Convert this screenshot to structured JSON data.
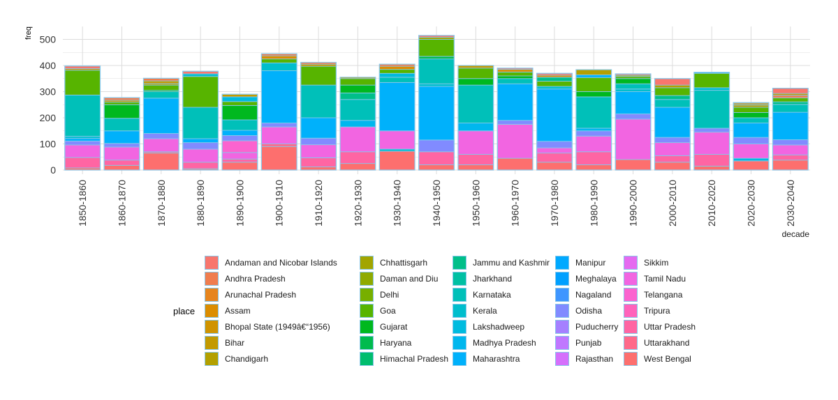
{
  "chart_data": {
    "type": "bar",
    "stacked": true,
    "ylabel": "freq",
    "xlabel": "decade",
    "ylim": [
      0,
      540
    ],
    "yticks": [
      0,
      100,
      200,
      300,
      400,
      500
    ],
    "grid": true,
    "legend_position": "bottom",
    "legend_title": "place",
    "categories": [
      "1850-1860",
      "1860-1870",
      "1870-1880",
      "1880-1890",
      "1890-1900",
      "1900-1910",
      "1910-1920",
      "1920-1930",
      "1930-1940",
      "1940-1950",
      "1950-1960",
      "1960-1970",
      "1970-1980",
      "1980-1990",
      "1990-2000",
      "2000-2010",
      "2010-2020",
      "2020-2030",
      "2030-2040"
    ],
    "totals": [
      398,
      277,
      351,
      378,
      290,
      445,
      412,
      355,
      405,
      515,
      400,
      390,
      370,
      384,
      368,
      350,
      374,
      258,
      313
    ],
    "series": [
      {
        "name": "Andaman and Nicobar Islands",
        "color": "#F8766D"
      },
      {
        "name": "Andhra Pradesh",
        "color": "#F07D4E"
      },
      {
        "name": "Arunachal Pradesh",
        "color": "#E7851E"
      },
      {
        "name": "Assam",
        "color": "#DC8D00"
      },
      {
        "name": "Bhopal State (1949â€“1956)",
        "color": "#D09400"
      },
      {
        "name": "Bihar",
        "color": "#C39A00"
      },
      {
        "name": "Chandigarh",
        "color": "#B3A000"
      },
      {
        "name": "Chhattisgarh",
        "color": "#A2A500"
      },
      {
        "name": "Daman and Diu",
        "color": "#8FAA00"
      },
      {
        "name": "Delhi",
        "color": "#77AF00"
      },
      {
        "name": "Goa",
        "color": "#57B400"
      },
      {
        "name": "Gujarat",
        "color": "#00B81F"
      },
      {
        "name": "Haryana",
        "color": "#00BB4E"
      },
      {
        "name": "Himachal Pradesh",
        "color": "#00BD6E"
      },
      {
        "name": "Jammu and Kashmir",
        "color": "#00BF8A"
      },
      {
        "name": "Jharkhand",
        "color": "#00C0A3"
      },
      {
        "name": "Karnataka",
        "color": "#00C0B9"
      },
      {
        "name": "Kerala",
        "color": "#00BECD"
      },
      {
        "name": "Lakshadweep",
        "color": "#00BBDF"
      },
      {
        "name": "Madhya Pradesh",
        "color": "#00B7EE"
      },
      {
        "name": "Maharashtra",
        "color": "#00B1FB"
      },
      {
        "name": "Manipur",
        "color": "#00A9FF"
      },
      {
        "name": "Meghalaya",
        "color": "#00A0FF"
      },
      {
        "name": "Nagaland",
        "color": "#3F96FF"
      },
      {
        "name": "Odisha",
        "color": "#818BFF"
      },
      {
        "name": "Puducherry",
        "color": "#A580FF"
      },
      {
        "name": "Punjab",
        "color": "#C077FF"
      },
      {
        "name": "Rajasthan",
        "color": "#D56FFB"
      },
      {
        "name": "Sikkim",
        "color": "#E56AF0"
      },
      {
        "name": "Tamil Nadu",
        "color": "#F265E1"
      },
      {
        "name": "Telangana",
        "color": "#FB63CF"
      },
      {
        "name": "Tripura",
        "color": "#FF63BB"
      },
      {
        "name": "Uttar Pradesh",
        "color": "#FF65A3"
      },
      {
        "name": "Uttarakhand",
        "color": "#FF698A"
      },
      {
        "name": "West Bengal",
        "color": "#FD6F6E"
      }
    ],
    "segments": [
      [
        [
          "West Bengal",
          8
        ],
        [
          "Uttar Pradesh",
          40
        ],
        [
          "Tamil Nadu",
          48
        ],
        [
          "Odisha",
          15
        ],
        [
          "Maharashtra",
          10
        ],
        [
          "Kerala",
          8
        ],
        [
          "Karnataka",
          158
        ],
        [
          "Goa",
          95
        ],
        [
          "Bihar",
          6
        ],
        [
          "Andaman and Nicobar Islands",
          10
        ]
      ],
      [
        [
          "West Bengal",
          18
        ],
        [
          "Uttar Pradesh",
          20
        ],
        [
          "Tamil Nadu",
          50
        ],
        [
          "Odisha",
          14
        ],
        [
          "Maharashtra",
          48
        ],
        [
          "Karnataka",
          48
        ],
        [
          "Gujarat",
          52
        ],
        [
          "Goa",
          10
        ],
        [
          "Bihar",
          7
        ],
        [
          "Andhra Pradesh",
          10
        ]
      ],
      [
        [
          "West Bengal",
          65
        ],
        [
          "Uttarakhand",
          5
        ],
        [
          "Tamil Nadu",
          50
        ],
        [
          "Odisha",
          20
        ],
        [
          "Maharashtra",
          135
        ],
        [
          "Karnataka",
          25
        ],
        [
          "Gujarat",
          5
        ],
        [
          "Goa",
          20
        ],
        [
          "Chandigarh",
          6
        ],
        [
          "Bihar",
          10
        ],
        [
          "Andhra Pradesh",
          10
        ]
      ],
      [
        [
          "West Bengal",
          5
        ],
        [
          "Uttar Pradesh",
          25
        ],
        [
          "Tamil Nadu",
          50
        ],
        [
          "Odisha",
          25
        ],
        [
          "Maharashtra",
          15
        ],
        [
          "Karnataka",
          120
        ],
        [
          "Goa",
          118
        ],
        [
          "Kerala",
          10
        ],
        [
          "Andaman and Nicobar Islands",
          10
        ]
      ],
      [
        [
          "West Bengal",
          30
        ],
        [
          "Uttar Pradesh",
          12
        ],
        [
          "Tamil Nadu",
          25
        ],
        [
          "Telangana",
          45
        ],
        [
          "Odisha",
          20
        ],
        [
          "Maharashtra",
          20
        ],
        [
          "Karnataka",
          40
        ],
        [
          "Gujarat",
          55
        ],
        [
          "Goa",
          15
        ],
        [
          "Lakshadweep",
          18
        ],
        [
          "Bihar",
          10
        ]
      ],
      [
        [
          "West Bengal",
          90
        ],
        [
          "Uttarakhand",
          10
        ],
        [
          "Tamil Nadu",
          65
        ],
        [
          "Odisha",
          15
        ],
        [
          "Maharashtra",
          200
        ],
        [
          "Kerala",
          30
        ],
        [
          "Goa",
          15
        ],
        [
          "Assam",
          12
        ],
        [
          "Andhra Pradesh",
          8
        ]
      ],
      [
        [
          "West Bengal",
          12
        ],
        [
          "Uttar Pradesh",
          35
        ],
        [
          "Tamil Nadu",
          50
        ],
        [
          "Odisha",
          25
        ],
        [
          "Maharashtra",
          78
        ],
        [
          "Karnataka",
          125
        ],
        [
          "Goa",
          72
        ],
        [
          "Bihar",
          8
        ],
        [
          "Andhra Pradesh",
          7
        ]
      ],
      [
        [
          "West Bengal",
          25
        ],
        [
          "Uttar Pradesh",
          45
        ],
        [
          "Tamil Nadu",
          95
        ],
        [
          "Madhya Pradesh",
          25
        ],
        [
          "Karnataka",
          80
        ],
        [
          "Jammu and Kashmir",
          25
        ],
        [
          "Gujarat",
          30
        ],
        [
          "Goa",
          25
        ],
        [
          "Bihar",
          5
        ]
      ],
      [
        [
          "West Bengal",
          72
        ],
        [
          "Kerala",
          8
        ],
        [
          "Tamil Nadu",
          70
        ],
        [
          "Maharashtra",
          185
        ],
        [
          "Karnataka",
          20
        ],
        [
          "Lakshadweep",
          15
        ],
        [
          "Goa",
          15
        ],
        [
          "Assam",
          12
        ],
        [
          "Andhra Pradesh",
          8
        ]
      ],
      [
        [
          "West Bengal",
          20
        ],
        [
          "Uttar Pradesh",
          50
        ],
        [
          "Odisha",
          45
        ],
        [
          "Maharashtra",
          205
        ],
        [
          "Kerala",
          10
        ],
        [
          "Karnataka",
          95
        ],
        [
          "Haryana",
          10
        ],
        [
          "Goa",
          65
        ],
        [
          "Chhattisgarh",
          8
        ],
        [
          "Andaman and Nicobar Islands",
          7
        ]
      ],
      [
        [
          "West Bengal",
          20
        ],
        [
          "Uttar Pradesh",
          40
        ],
        [
          "Tamil Nadu",
          90
        ],
        [
          "Madhya Pradesh",
          30
        ],
        [
          "Karnataka",
          145
        ],
        [
          "Gujarat",
          25
        ],
        [
          "Goa",
          40
        ],
        [
          "Bihar",
          10
        ]
      ],
      [
        [
          "West Bengal",
          45
        ],
        [
          "Tamil Nadu",
          130
        ],
        [
          "Odisha",
          15
        ],
        [
          "Maharashtra",
          140
        ],
        [
          "Karnataka",
          20
        ],
        [
          "Gujarat",
          10
        ],
        [
          "Goa",
          15
        ],
        [
          "Assam",
          10
        ],
        [
          "Andaman and Nicobar Islands",
          5
        ]
      ],
      [
        [
          "West Bengal",
          30
        ],
        [
          "Uttar Pradesh",
          35
        ],
        [
          "Tamil Nadu",
          20
        ],
        [
          "Odisha",
          25
        ],
        [
          "Maharashtra",
          200
        ],
        [
          "Kerala",
          10
        ],
        [
          "Goa",
          20
        ],
        [
          "Jammu and Kashmir",
          15
        ],
        [
          "Assam",
          8
        ],
        [
          "Andaman and Nicobar Islands",
          7
        ]
      ],
      [
        [
          "West Bengal",
          20
        ],
        [
          "Uttar Pradesh",
          50
        ],
        [
          "Tamil Nadu",
          60
        ],
        [
          "Odisha",
          20
        ],
        [
          "Madhya Pradesh",
          10
        ],
        [
          "Karnataka",
          120
        ],
        [
          "Gujarat",
          20
        ],
        [
          "Goa",
          54
        ],
        [
          "Maharashtra",
          10
        ],
        [
          "Chandigarh",
          20
        ]
      ],
      [
        [
          "West Bengal",
          40
        ],
        [
          "Tamil Nadu",
          155
        ],
        [
          "Odisha",
          20
        ],
        [
          "Maharashtra",
          85
        ],
        [
          "Kerala",
          10
        ],
        [
          "Karnataka",
          20
        ],
        [
          "Gujarat",
          20
        ],
        [
          "Goa",
          8
        ],
        [
          "Chandigarh",
          5
        ],
        [
          "Andaman and Nicobar Islands",
          5
        ]
      ],
      [
        [
          "West Bengal",
          30
        ],
        [
          "Uttar Pradesh",
          25
        ],
        [
          "Tamil Nadu",
          50
        ],
        [
          "Odisha",
          20
        ],
        [
          "Maharashtra",
          115
        ],
        [
          "Karnataka",
          30
        ],
        [
          "Jammu and Kashmir",
          15
        ],
        [
          "Goa",
          30
        ],
        [
          "Chandigarh",
          10
        ],
        [
          "Andaman and Nicobar Islands",
          25
        ]
      ],
      [
        [
          "West Bengal",
          15
        ],
        [
          "Uttar Pradesh",
          45
        ],
        [
          "Tamil Nadu",
          85
        ],
        [
          "Odisha",
          15
        ],
        [
          "Karnataka",
          145
        ],
        [
          "Kerala",
          10
        ],
        [
          "Goa",
          55
        ],
        [
          "Manipur",
          4
        ]
      ],
      [
        [
          "West Bengal",
          35
        ],
        [
          "Lakshadweep",
          10
        ],
        [
          "Tamil Nadu",
          55
        ],
        [
          "Odisha",
          25
        ],
        [
          "Maharashtra",
          55
        ],
        [
          "Karnataka",
          20
        ],
        [
          "Gujarat",
          20
        ],
        [
          "Goa",
          20
        ],
        [
          "Chandigarh",
          8
        ],
        [
          "Bihar",
          5
        ],
        [
          "Assam",
          5
        ]
      ],
      [
        [
          "West Bengal",
          38
        ],
        [
          "Uttar Pradesh",
          20
        ],
        [
          "Tamil Nadu",
          38
        ],
        [
          "Odisha",
          20
        ],
        [
          "Maharashtra",
          105
        ],
        [
          "Karnataka",
          30
        ],
        [
          "Jammu and Kashmir",
          10
        ],
        [
          "Goa",
          15
        ],
        [
          "Andhra Pradesh",
          10
        ],
        [
          "Bihar",
          7
        ],
        [
          "Andaman and Nicobar Islands",
          20
        ]
      ]
    ]
  }
}
